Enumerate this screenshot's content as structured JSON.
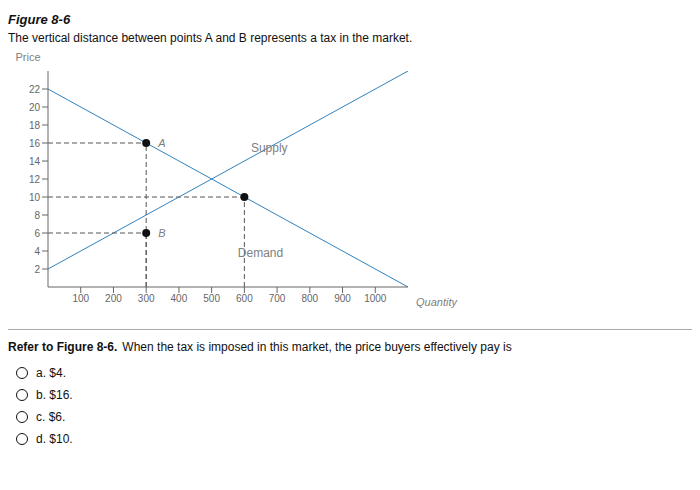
{
  "chart_data": {
    "type": "line",
    "title": "Figure 8-6",
    "subtitle": "The vertical distance between points A and B represents a tax in the market.",
    "xlabel": "Quantity",
    "ylabel": "Price",
    "xlim": [
      0,
      1100
    ],
    "ylim": [
      0,
      24
    ],
    "xticks": [
      100,
      200,
      300,
      400,
      500,
      600,
      700,
      800,
      900,
      1000
    ],
    "yticks": [
      2,
      4,
      6,
      8,
      10,
      12,
      14,
      16,
      18,
      20,
      22
    ],
    "grid": false,
    "legend": false,
    "series": [
      {
        "x": [
          0,
          1100
        ],
        "values": [
          22,
          0
        ]
      },
      {
        "x": [
          0,
          1100
        ],
        "values": [
          2,
          24
        ]
      }
    ],
    "points": [
      {
        "label": "A",
        "x": 300,
        "y": 16
      },
      {
        "label": "B",
        "x": 300,
        "y": 6
      },
      {
        "x": 600,
        "y": 10
      }
    ],
    "annotations": [
      {
        "text": "Supply",
        "x": 620,
        "y": 15.5
      },
      {
        "text": "Demand",
        "x": 580,
        "y": 3.8
      }
    ],
    "question": [
      "Refer to Figure 8-6.",
      "When the tax is imposed in this market, the price buyers effectively pay is"
    ],
    "options": [
      "a. $4.",
      "b. $16.",
      "c. $6.",
      "d. $10."
    ]
  }
}
